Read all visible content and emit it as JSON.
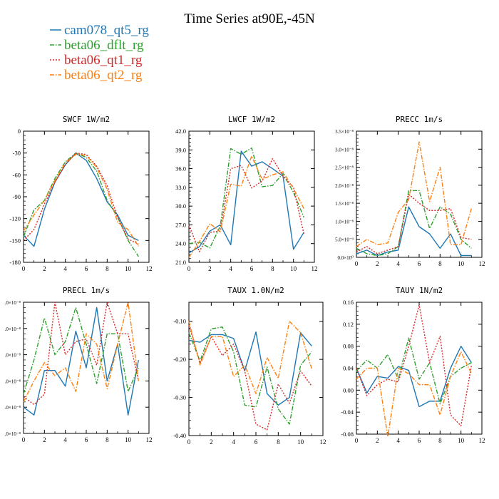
{
  "figure_title": "Time Series at90E,-45N",
  "colors": {
    "cam078_qt5_rg": "#1f77b4",
    "beta06_dflt_rg": "#2ca02c",
    "beta06_qt1_rg": "#d62728",
    "beta06_qt2_rg": "#ff7f0e"
  },
  "legend": [
    {
      "label": "cam078_qt5_rg",
      "color": "#1f77b4",
      "dash": "solid"
    },
    {
      "label": "beta06_dflt_rg",
      "color": "#2ca02c",
      "dash": "dashdot"
    },
    {
      "label": "beta06_qt1_rg",
      "color": "#d62728",
      "dash": "dot"
    },
    {
      "label": "beta06_qt2_rg",
      "color": "#ff7f0e",
      "dash": "dashdot"
    }
  ],
  "chart_data": [
    {
      "type": "line",
      "title": "SWCF   1W/m2",
      "xlim": [
        0,
        12
      ],
      "xticks": [
        0,
        2,
        4,
        6,
        8,
        10,
        12
      ],
      "ylim": [
        -180,
        0
      ],
      "yticks": [
        -180,
        -150,
        -120,
        -90,
        -60,
        -30,
        0
      ],
      "ytick_labels": [
        "-180",
        "-150",
        "-120",
        "-90",
        "-60",
        "-30",
        "0"
      ],
      "x": [
        0,
        1,
        2,
        3,
        4,
        5,
        6,
        7,
        8,
        9,
        10,
        11
      ],
      "series": [
        {
          "name": "cam078_qt5_rg",
          "values": [
            -143,
            -158,
            -107,
            -70,
            -46,
            -30,
            -40,
            -65,
            -97,
            -115,
            -143,
            -150
          ]
        },
        {
          "name": "beta06_dflt_rg",
          "values": [
            -145,
            -108,
            -95,
            -65,
            -42,
            -30,
            -36,
            -55,
            -95,
            -118,
            -150,
            -172
          ]
        },
        {
          "name": "beta06_qt1_rg",
          "values": [
            -150,
            -135,
            -100,
            -70,
            -46,
            -30,
            -32,
            -48,
            -75,
            -118,
            -148,
            -155
          ]
        },
        {
          "name": "beta06_qt2_rg",
          "values": [
            -137,
            -115,
            -95,
            -68,
            -43,
            -32,
            -33,
            -50,
            -80,
            -125,
            -135,
            -158
          ]
        }
      ]
    },
    {
      "type": "line",
      "title": "LWCF   1W/m2",
      "xlim": [
        0,
        12
      ],
      "xticks": [
        0,
        2,
        4,
        6,
        8,
        10,
        12
      ],
      "ylim": [
        21,
        42
      ],
      "yticks": [
        21,
        24,
        27,
        30,
        33,
        36,
        39,
        42
      ],
      "ytick_labels": [
        "21.0",
        "24.0",
        "27.0",
        "30.0",
        "33.0",
        "36.0",
        "39.0",
        "42.0"
      ],
      "x": [
        0,
        1,
        2,
        3,
        4,
        5,
        6,
        7,
        8,
        9,
        10,
        11
      ],
      "series": [
        {
          "name": "cam078_qt5_rg",
          "values": [
            22.5,
            23.5,
            26,
            27,
            23.8,
            38.8,
            36.4,
            37.1,
            36,
            34.8,
            23.1,
            25.8
          ]
        },
        {
          "name": "beta06_dflt_rg",
          "values": [
            24,
            24.2,
            23.3,
            26.8,
            39.2,
            38.3,
            39.3,
            33.1,
            33.3,
            35.2,
            32.2,
            28.2
          ]
        },
        {
          "name": "beta06_qt1_rg",
          "values": [
            27,
            22.7,
            25.8,
            26,
            36,
            36.5,
            32.9,
            34,
            37.6,
            34.8,
            33,
            25.5
          ]
        },
        {
          "name": "beta06_qt2_rg",
          "values": [
            21.8,
            24.3,
            27.2,
            25.9,
            33.5,
            33.2,
            38,
            34.3,
            35,
            35.5,
            32.8,
            29.6
          ]
        }
      ]
    },
    {
      "type": "line",
      "title": "PRECC   1m/s",
      "xlim": [
        0,
        12
      ],
      "xticks": [
        0,
        2,
        4,
        6,
        8,
        10,
        12
      ],
      "ylim": [
        0,
        3.5
      ],
      "yticks": [
        0,
        0.5,
        1.0,
        1.5,
        2.0,
        2.5,
        3.0,
        3.5
      ],
      "ytick_labels": [
        "0.0×10⁰",
        "5.0×10⁻⁹",
        "1.0×10⁻⁸",
        "1.5×10⁻⁸",
        "2.0×10⁻⁸",
        "2.5×10⁻⁸",
        "3.0×10⁻⁸",
        "3.5×10⁻⁸"
      ],
      "x": [
        0,
        1,
        2,
        3,
        4,
        5,
        6,
        7,
        8,
        9,
        10,
        11
      ],
      "series": [
        {
          "name": "cam078_qt5_rg",
          "values": [
            0.1,
            0.2,
            0.05,
            0.15,
            0.2,
            1.4,
            0.85,
            0.65,
            0.25,
            0.65,
            0.05,
            0.05
          ]
        },
        {
          "name": "beta06_dflt_rg",
          "values": [
            0.25,
            0.1,
            0.05,
            0.1,
            0.3,
            1.85,
            1.85,
            0.8,
            1.4,
            1.2,
            0.5,
            0.25
          ]
        },
        {
          "name": "beta06_qt1_rg",
          "values": [
            0.15,
            0.3,
            0.1,
            0.2,
            0.3,
            1.75,
            1.5,
            1.3,
            1.3,
            1.35,
            0.55,
            0.5
          ]
        },
        {
          "name": "beta06_qt2_rg",
          "values": [
            0.3,
            0.5,
            0.35,
            0.4,
            1.25,
            1.6,
            3.2,
            1.55,
            2.5,
            0.35,
            0.35,
            1.35
          ]
        }
      ]
    },
    {
      "type": "line",
      "title": "PRECL   1m/s",
      "xlim": [
        0,
        12
      ],
      "xticks": [
        0,
        2,
        4,
        6,
        8,
        10,
        12
      ],
      "ylim": [
        0,
        5
      ],
      "yticks": [
        0,
        1,
        2,
        3,
        4,
        5
      ],
      "ytick_labels": [
        ".0×10⁻⁸",
        ".0×10⁻⁸",
        ".0×10⁻⁸",
        ".0×10⁻⁸",
        ".0×10⁻⁸",
        ".0×10⁻⁸"
      ],
      "x": [
        0,
        1,
        2,
        3,
        4,
        5,
        6,
        7,
        8,
        9,
        10,
        11
      ],
      "series": [
        {
          "name": "cam078_qt5_rg",
          "values": [
            1.0,
            0.7,
            2.4,
            2.4,
            1.8,
            3.9,
            2.5,
            4.8,
            2.0,
            3.4,
            0.7,
            2.8
          ]
        },
        {
          "name": "beta06_dflt_rg",
          "values": [
            1.5,
            2.8,
            4.4,
            3.0,
            3.5,
            4.8,
            3.4,
            1.9,
            3.8,
            3.8,
            1.6,
            2.5
          ]
        },
        {
          "name": "beta06_qt1_rg",
          "values": [
            1.4,
            1.1,
            1.5,
            5.0,
            3.0,
            3.5,
            3.6,
            2.6,
            5.0,
            3.8,
            3.8,
            2.0
          ]
        },
        {
          "name": "beta06_qt2_rg",
          "values": [
            1.2,
            2.0,
            2.7,
            2.2,
            2.5,
            1.6,
            3.8,
            3.4,
            1.7,
            3.4,
            5.0,
            2.0
          ]
        }
      ]
    },
    {
      "type": "line",
      "title": "TAUX   1.0N/m2",
      "xlim": [
        0,
        12
      ],
      "xticks": [
        0,
        2,
        4,
        6,
        8,
        10,
        12
      ],
      "ylim": [
        -0.4,
        -0.05
      ],
      "yticks": [
        -0.4,
        -0.3,
        -0.2,
        -0.1
      ],
      "ytick_labels": [
        "-0.40",
        "-0.30",
        "-0.20",
        "-0.10"
      ],
      "x": [
        0,
        1,
        2,
        3,
        4,
        5,
        6,
        7,
        8,
        9,
        10,
        11
      ],
      "series": [
        {
          "name": "cam078_qt5_rg",
          "values": [
            -0.15,
            -0.155,
            -0.135,
            -0.135,
            -0.145,
            -0.23,
            -0.128,
            -0.29,
            -0.32,
            -0.3,
            -0.13,
            -0.165
          ]
        },
        {
          "name": "beta06_dflt_rg",
          "values": [
            -0.13,
            -0.205,
            -0.12,
            -0.115,
            -0.18,
            -0.32,
            -0.325,
            -0.22,
            -0.33,
            -0.37,
            -0.215,
            -0.18
          ]
        },
        {
          "name": "beta06_qt1_rg",
          "values": [
            -0.11,
            -0.21,
            -0.14,
            -0.19,
            -0.16,
            -0.23,
            -0.37,
            -0.385,
            -0.265,
            -0.315,
            -0.23,
            -0.27
          ]
        },
        {
          "name": "beta06_qt2_rg",
          "values": [
            -0.1,
            -0.215,
            -0.14,
            -0.14,
            -0.245,
            -0.215,
            -0.29,
            -0.195,
            -0.25,
            -0.1,
            -0.13,
            -0.225
          ]
        }
      ]
    },
    {
      "type": "line",
      "title": "TAUY   1N/m2",
      "xlim": [
        0,
        12
      ],
      "xticks": [
        0,
        2,
        4,
        6,
        8,
        10,
        12
      ],
      "ylim": [
        -0.08,
        0.16
      ],
      "yticks": [
        -0.08,
        -0.04,
        0.0,
        0.04,
        0.08,
        0.12,
        0.16
      ],
      "ytick_labels": [
        "-0.08",
        "-0.04",
        "0.00",
        "0.04",
        "0.08",
        "0.12",
        "0.16"
      ],
      "x": [
        0,
        1,
        2,
        3,
        4,
        5,
        6,
        7,
        8,
        9,
        10,
        11
      ],
      "series": [
        {
          "name": "cam078_qt5_rg",
          "values": [
            0.04,
            -0.005,
            0.025,
            0.022,
            0.043,
            0.036,
            -0.03,
            -0.02,
            -0.02,
            0.04,
            0.08,
            0.05
          ]
        },
        {
          "name": "beta06_dflt_rg",
          "values": [
            0.035,
            0.055,
            0.04,
            0.065,
            0.02,
            0.095,
            0.02,
            0.05,
            -0.025,
            0.025,
            0.04,
            0.05
          ]
        },
        {
          "name": "beta06_qt1_rg",
          "values": [
            0.04,
            -0.01,
            0.01,
            0.02,
            0.015,
            0.08,
            0.155,
            0.05,
            0.098,
            -0.045,
            -0.065,
            0.045
          ]
        },
        {
          "name": "beta06_qt2_rg",
          "values": [
            0.02,
            0.04,
            0.04,
            -0.085,
            0.04,
            0.03,
            0.01,
            0.01,
            -0.045,
            0.025,
            0.07,
            0.03
          ]
        }
      ]
    }
  ]
}
